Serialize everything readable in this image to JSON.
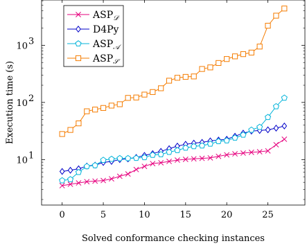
{
  "chart_data": {
    "type": "line",
    "xlabel": "Solved conformance checking instances",
    "ylabel": "Execution time (s)",
    "xlim": [
      -2.5,
      29.5
    ],
    "ylim": [
      1.6,
      6200
    ],
    "yscale": "log",
    "grid": false,
    "legend_position": "top-left",
    "x_ticks": [
      0,
      5,
      10,
      15,
      20,
      25
    ],
    "y_ticks": [
      {
        "value": 10,
        "label": "10",
        "sup": "1"
      },
      {
        "value": 100,
        "label": "10",
        "sup": "2"
      },
      {
        "value": 1000,
        "label": "10",
        "sup": "3"
      }
    ],
    "x": [
      0,
      1,
      2,
      3,
      4,
      5,
      6,
      7,
      8,
      9,
      10,
      11,
      12,
      13,
      14,
      15,
      16,
      17,
      18,
      19,
      20,
      21,
      22,
      23,
      24,
      25,
      26,
      27
    ],
    "series": [
      {
        "name": "ASP",
        "name_sub": "𝒟",
        "color": "#e6007e",
        "marker": "x",
        "values": [
          3.5,
          3.7,
          3.9,
          4.1,
          4.2,
          4.3,
          4.6,
          5.1,
          5.6,
          6.7,
          7.6,
          8.5,
          8.8,
          9.3,
          9.8,
          10.1,
          10.3,
          10.5,
          10.7,
          11.4,
          12.1,
          12.6,
          13.0,
          13.4,
          13.7,
          14.2,
          18.2,
          22.7
        ]
      },
      {
        "name": "D4Py",
        "name_sub": "",
        "color": "#0000c8",
        "marker": "diamond",
        "values": [
          6.2,
          6.5,
          6.9,
          7.7,
          8.0,
          8.9,
          9.3,
          10.0,
          10.3,
          10.9,
          11.8,
          12.7,
          13.9,
          15.5,
          17.2,
          18.5,
          19.4,
          20.0,
          21.2,
          22.0,
          22.7,
          25.6,
          29.0,
          31.5,
          32.3,
          33.2,
          35.5,
          38.7
        ]
      },
      {
        "name": "ASP",
        "name_sub": "𝒜",
        "color": "#00b3d9",
        "marker": "pentagon",
        "values": [
          4.3,
          4.5,
          6.0,
          7.6,
          7.9,
          9.8,
          10.2,
          10.5,
          10.5,
          10.6,
          10.9,
          12.0,
          12.3,
          13.5,
          14.5,
          16.0,
          17.0,
          17.5,
          18.8,
          20.8,
          21.5,
          24.0,
          27.0,
          33.0,
          37.0,
          55.0,
          85.0,
          120.0
        ]
      },
      {
        "name": "ASP",
        "name_sub": "𝒮",
        "color": "#f57c00",
        "marker": "square",
        "values": [
          28,
          33,
          43,
          70,
          75,
          80,
          88,
          93,
          120,
          122,
          137,
          152,
          177,
          240,
          270,
          280,
          285,
          385,
          410,
          490,
          575,
          640,
          700,
          745,
          950,
          2200,
          3300,
          4400
        ]
      }
    ]
  }
}
